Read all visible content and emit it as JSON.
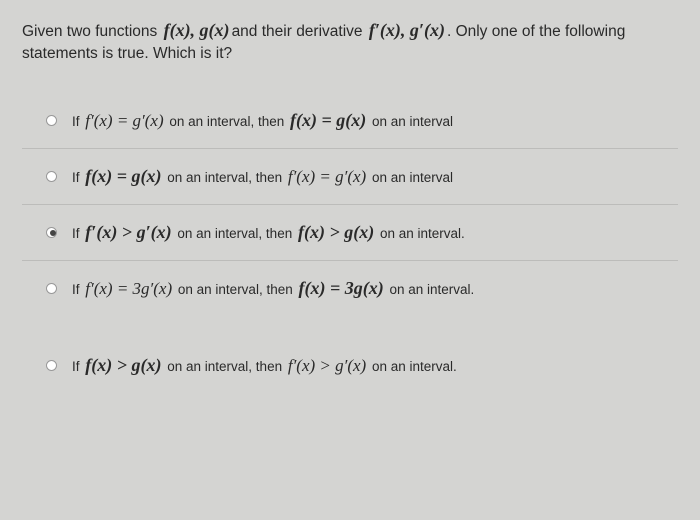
{
  "question": {
    "part1": "Given two functions ",
    "math1": "f(x), g(x)",
    "part2": "and their derivative ",
    "math2": "f′(x), g′(x)",
    "part3": ". Only one of the following statements is true. Which is it?"
  },
  "options": [
    {
      "prefix": "If ",
      "m1": "f′(x) = g′(x)",
      "mid1": " on an interval, then ",
      "m2": "f(x) = g(x)",
      "end": " on an interval",
      "selected": false,
      "border": true
    },
    {
      "prefix": "If ",
      "m1": "f(x) = g(x)",
      "mid1": " on an interval, then ",
      "m2": "f′(x) = g′(x)",
      "end": " on an interval",
      "selected": false,
      "border": true
    },
    {
      "prefix": "If ",
      "m1": "f′(x) > g′(x)",
      "mid1": " on an interval, then ",
      "m2": "f(x) > g(x)",
      "end": " on an interval.",
      "selected": true,
      "border": true
    },
    {
      "prefix": "If ",
      "m1": "f′(x) = 3g′(x)",
      "mid1": " on an interval, then ",
      "m2": "f(x) = 3g(x)",
      "end": " on an interval.",
      "selected": false,
      "border": false
    },
    {
      "prefix": "If ",
      "m1": "f(x) > g(x)",
      "mid1": " on an interval, then ",
      "m2": "f′(x) > g′(x)",
      "end": " on an interval.",
      "selected": false,
      "border": false
    }
  ],
  "styling": {
    "background": "#d4d4d2",
    "text_color": "#2a2a2a",
    "border_color": "#bcbcba",
    "question_fontsize": 15.5,
    "option_fontsize": 13.5,
    "math_fontsize": 17,
    "math_bold_fontsize": 18
  }
}
